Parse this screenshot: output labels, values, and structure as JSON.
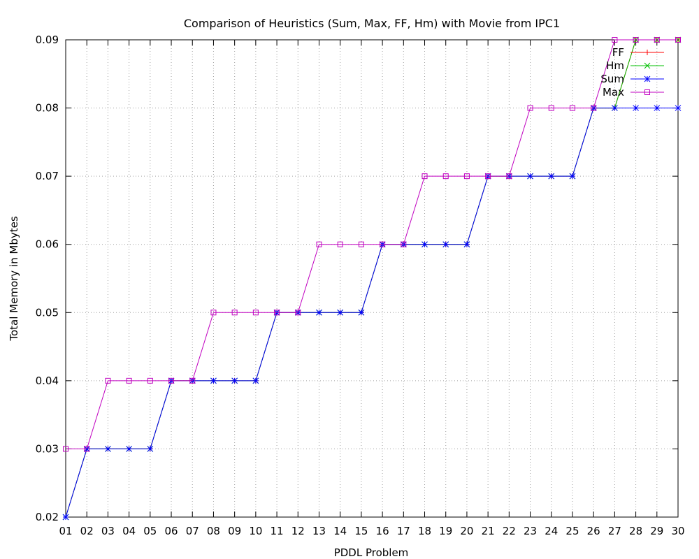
{
  "chart_data": {
    "type": "line",
    "title": "Comparison of Heuristics (Sum, Max, FF, Hm) with Movie from IPC1",
    "xlabel": "PDDL Problem",
    "ylabel": "Total Memory in Mbytes",
    "ylim": [
      0.02,
      0.09
    ],
    "yticks": [
      "0.02",
      "0.03",
      "0.04",
      "0.05",
      "0.06",
      "0.07",
      "0.08",
      "0.09"
    ],
    "grid": true,
    "legend_position": "top-right",
    "categories": [
      "01",
      "02",
      "03",
      "04",
      "05",
      "06",
      "07",
      "08",
      "09",
      "10",
      "11",
      "12",
      "13",
      "14",
      "15",
      "16",
      "17",
      "18",
      "19",
      "20",
      "21",
      "22",
      "23",
      "24",
      "25",
      "26",
      "27",
      "28",
      "29",
      "30"
    ],
    "series": [
      {
        "name": "FF",
        "color": "#ff0000",
        "marker": "plus",
        "values": [
          0.02,
          0.03,
          0.03,
          0.03,
          0.03,
          0.04,
          0.04,
          0.04,
          0.04,
          0.04,
          0.05,
          0.05,
          0.05,
          0.05,
          0.05,
          0.06,
          0.06,
          0.06,
          0.06,
          0.06,
          0.07,
          0.07,
          0.07,
          0.07,
          0.07,
          0.08,
          0.08,
          0.09,
          0.09,
          0.09
        ]
      },
      {
        "name": "Hm",
        "color": "#00c000",
        "marker": "cross",
        "values": [
          0.02,
          0.03,
          0.03,
          0.03,
          0.03,
          0.04,
          0.04,
          0.04,
          0.04,
          0.04,
          0.05,
          0.05,
          0.05,
          0.05,
          0.05,
          0.06,
          0.06,
          0.06,
          0.06,
          0.06,
          0.07,
          0.07,
          0.07,
          0.07,
          0.07,
          0.08,
          0.08,
          0.09,
          0.09,
          0.09
        ]
      },
      {
        "name": "Sum",
        "color": "#0000ff",
        "marker": "star",
        "values": [
          0.02,
          0.03,
          0.03,
          0.03,
          0.03,
          0.04,
          0.04,
          0.04,
          0.04,
          0.04,
          0.05,
          0.05,
          0.05,
          0.05,
          0.05,
          0.06,
          0.06,
          0.06,
          0.06,
          0.06,
          0.07,
          0.07,
          0.07,
          0.07,
          0.07,
          0.08,
          0.08,
          0.08,
          0.08,
          0.08
        ]
      },
      {
        "name": "Max",
        "color": "#c000c0",
        "marker": "square",
        "values": [
          0.03,
          0.03,
          0.04,
          0.04,
          0.04,
          0.04,
          0.04,
          0.05,
          0.05,
          0.05,
          0.05,
          0.05,
          0.06,
          0.06,
          0.06,
          0.06,
          0.06,
          0.07,
          0.07,
          0.07,
          0.07,
          0.07,
          0.08,
          0.08,
          0.08,
          0.08,
          0.09,
          0.09,
          0.09,
          0.09
        ]
      }
    ]
  }
}
